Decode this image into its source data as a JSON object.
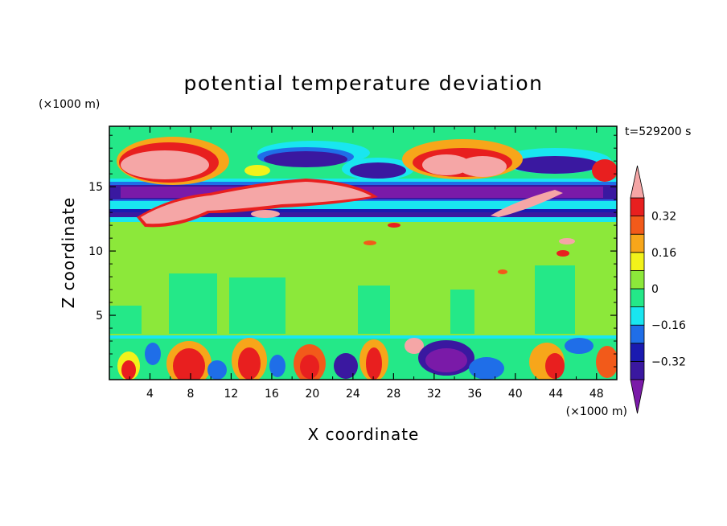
{
  "chart_data": {
    "type": "heatmap",
    "title": "potential temperature deviation",
    "xlabel": "X coordinate",
    "ylabel": "Z coordinate",
    "x_unit": "(×1000 m)",
    "y_unit": "(×1000 m)",
    "time_label": "t=529200 s",
    "xlim": [
      0,
      50
    ],
    "ylim": [
      0,
      19.7
    ],
    "x_ticks": [
      4,
      8,
      12,
      16,
      20,
      24,
      28,
      32,
      36,
      40,
      44,
      48
    ],
    "y_ticks": [
      5,
      10,
      15
    ],
    "colorbar": {
      "levels": [
        -0.4,
        -0.32,
        -0.24,
        -0.16,
        -0.08,
        0,
        0.08,
        0.16,
        0.24,
        0.32,
        0.4
      ],
      "labeled_ticks": [
        0.32,
        0.16,
        0,
        -0.16,
        -0.32
      ],
      "colors": [
        "#7a1aa8",
        "#3a18a0",
        "#1a1ab0",
        "#1f6ee8",
        "#19e6f0",
        "#24e888",
        "#8ce83a",
        "#f2f21a",
        "#f7a61a",
        "#f25a1a",
        "#e81f1f",
        "#f5a6a6"
      ],
      "extend": "both"
    }
  }
}
